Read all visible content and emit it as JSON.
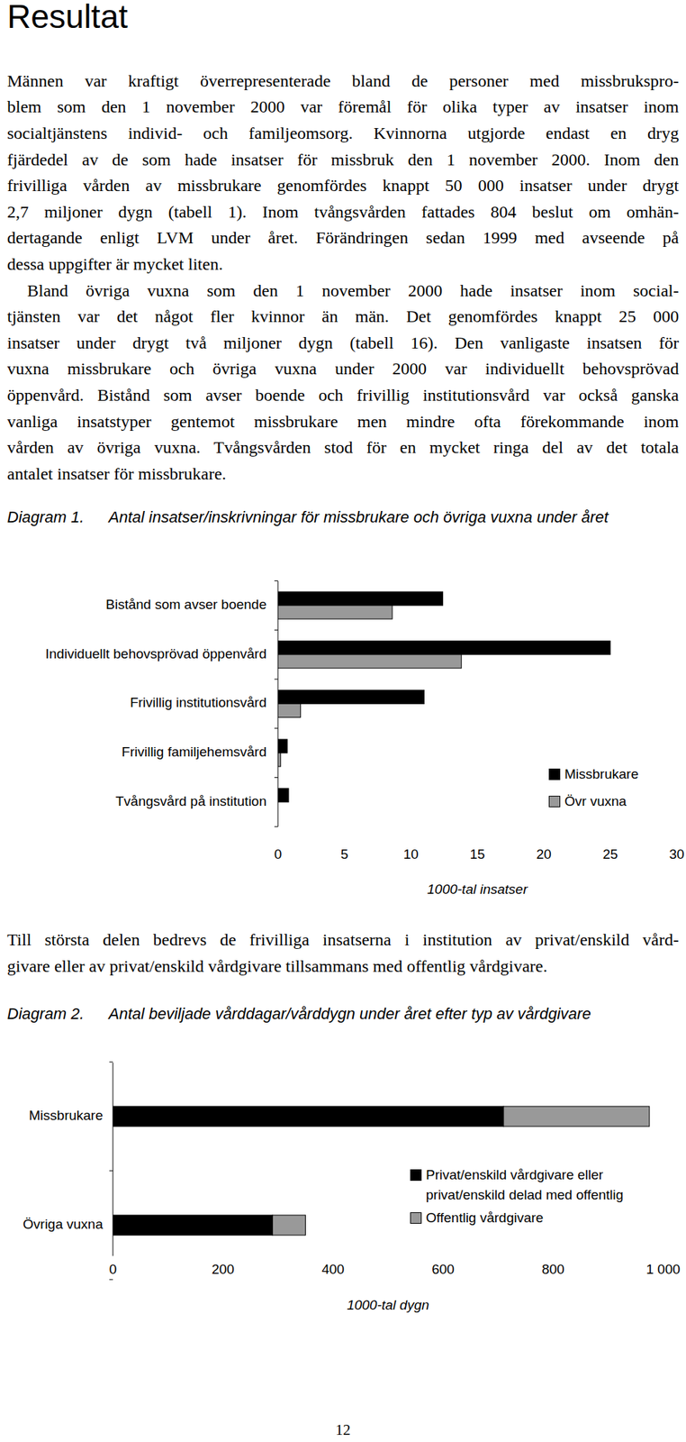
{
  "heading": "Resultat",
  "paragraphs": [
    [
      "Männen var kraftigt överrepresenterade bland de personer med missbrukspro-",
      "blem som den 1 november 2000 var föremål för olika typer av insatser inom",
      "socialtjänstens individ- och familjeomsorg. Kvinnorna utgjorde endast en dryg",
      "fjärdedel av de som hade insatser för missbruk den 1 november 2000. Inom den",
      "frivilliga vården av missbrukare genomfördes knappt 50 000 insatser under drygt",
      "2,7 miljoner dygn (tabell 1). Inom tvångsvården fattades 804 beslut om omhän-",
      "dertagande enligt LVM under året. Förändringen sedan 1999 med avseende på",
      "dessa uppgifter är mycket liten."
    ],
    [
      "Bland övriga vuxna som den 1 november 2000 hade insatser inom social-",
      "tjänsten var det något fler kvinnor än män. Det genomfördes knappt 25 000",
      "insatser under drygt två miljoner dygn (tabell 16). Den vanligaste insatsen för",
      "vuxna missbrukare och övriga vuxna under 2000 var individuellt behovsprövad",
      "öppenvård. Bistånd som avser boende och frivillig institutionsvård var också ganska",
      "vanliga insatstyper gentemot missbrukare men mindre ofta förekommande inom",
      "vården av övriga vuxna. Tvångsvården stod för en mycket ringa del av det totala",
      "antalet insatser för missbrukare."
    ]
  ],
  "paragraph_between": [
    "Till största delen bedrevs de frivilliga insatserna i institution av privat/enskild vård-",
    "givare eller av privat/enskild vårdgivare tillsammans med offentlig vårdgivare."
  ],
  "figure_labels": [
    "Diagram 1.",
    "Diagram 2."
  ],
  "page_number": 12,
  "chart_data": [
    {
      "type": "bar",
      "orientation": "horizontal",
      "title": "Antal insatser/inskrivningar för missbrukare och övriga vuxna under året",
      "categories": [
        "Bistånd som avser boende",
        "Individuellt behovsprövad öppenvård",
        "Frivillig institutionsvård",
        "Frivillig familjehemsvård",
        "Tvångsvård på institution"
      ],
      "series": [
        {
          "name": "Missbrukare",
          "color": "#000000",
          "values": [
            12.4,
            25,
            11,
            0.7,
            0.8
          ]
        },
        {
          "name": "Övr vuxna",
          "color": "#999999",
          "values": [
            8.6,
            13.8,
            1.7,
            0.2,
            0
          ]
        }
      ],
      "xlabel": "1000-tal insatser",
      "xlim": [
        0,
        30
      ],
      "xticks": [
        0,
        5,
        10,
        15,
        20,
        25,
        30
      ],
      "legend": "right"
    },
    {
      "type": "bar",
      "orientation": "horizontal",
      "stacked": true,
      "title": "Antal beviljade vårddagar/vårddygn under året efter typ av vårdgivare",
      "categories": [
        "Missbrukare",
        "Övriga vuxna"
      ],
      "series": [
        {
          "name": "Privat/enskild vårdgivare eller privat/enskild delad med offentlig",
          "color": "#000000",
          "values": [
            710,
            290
          ]
        },
        {
          "name": "Offentlig vårdgivare",
          "color": "#999999",
          "values": [
            265,
            60
          ]
        }
      ],
      "xlabel": "1000-tal dygn",
      "xlim": [
        0,
        1000
      ],
      "xticks": [
        0,
        200,
        400,
        600,
        800,
        {
          "value": 1000,
          "label": "1 000"
        }
      ],
      "legend": "right"
    }
  ]
}
